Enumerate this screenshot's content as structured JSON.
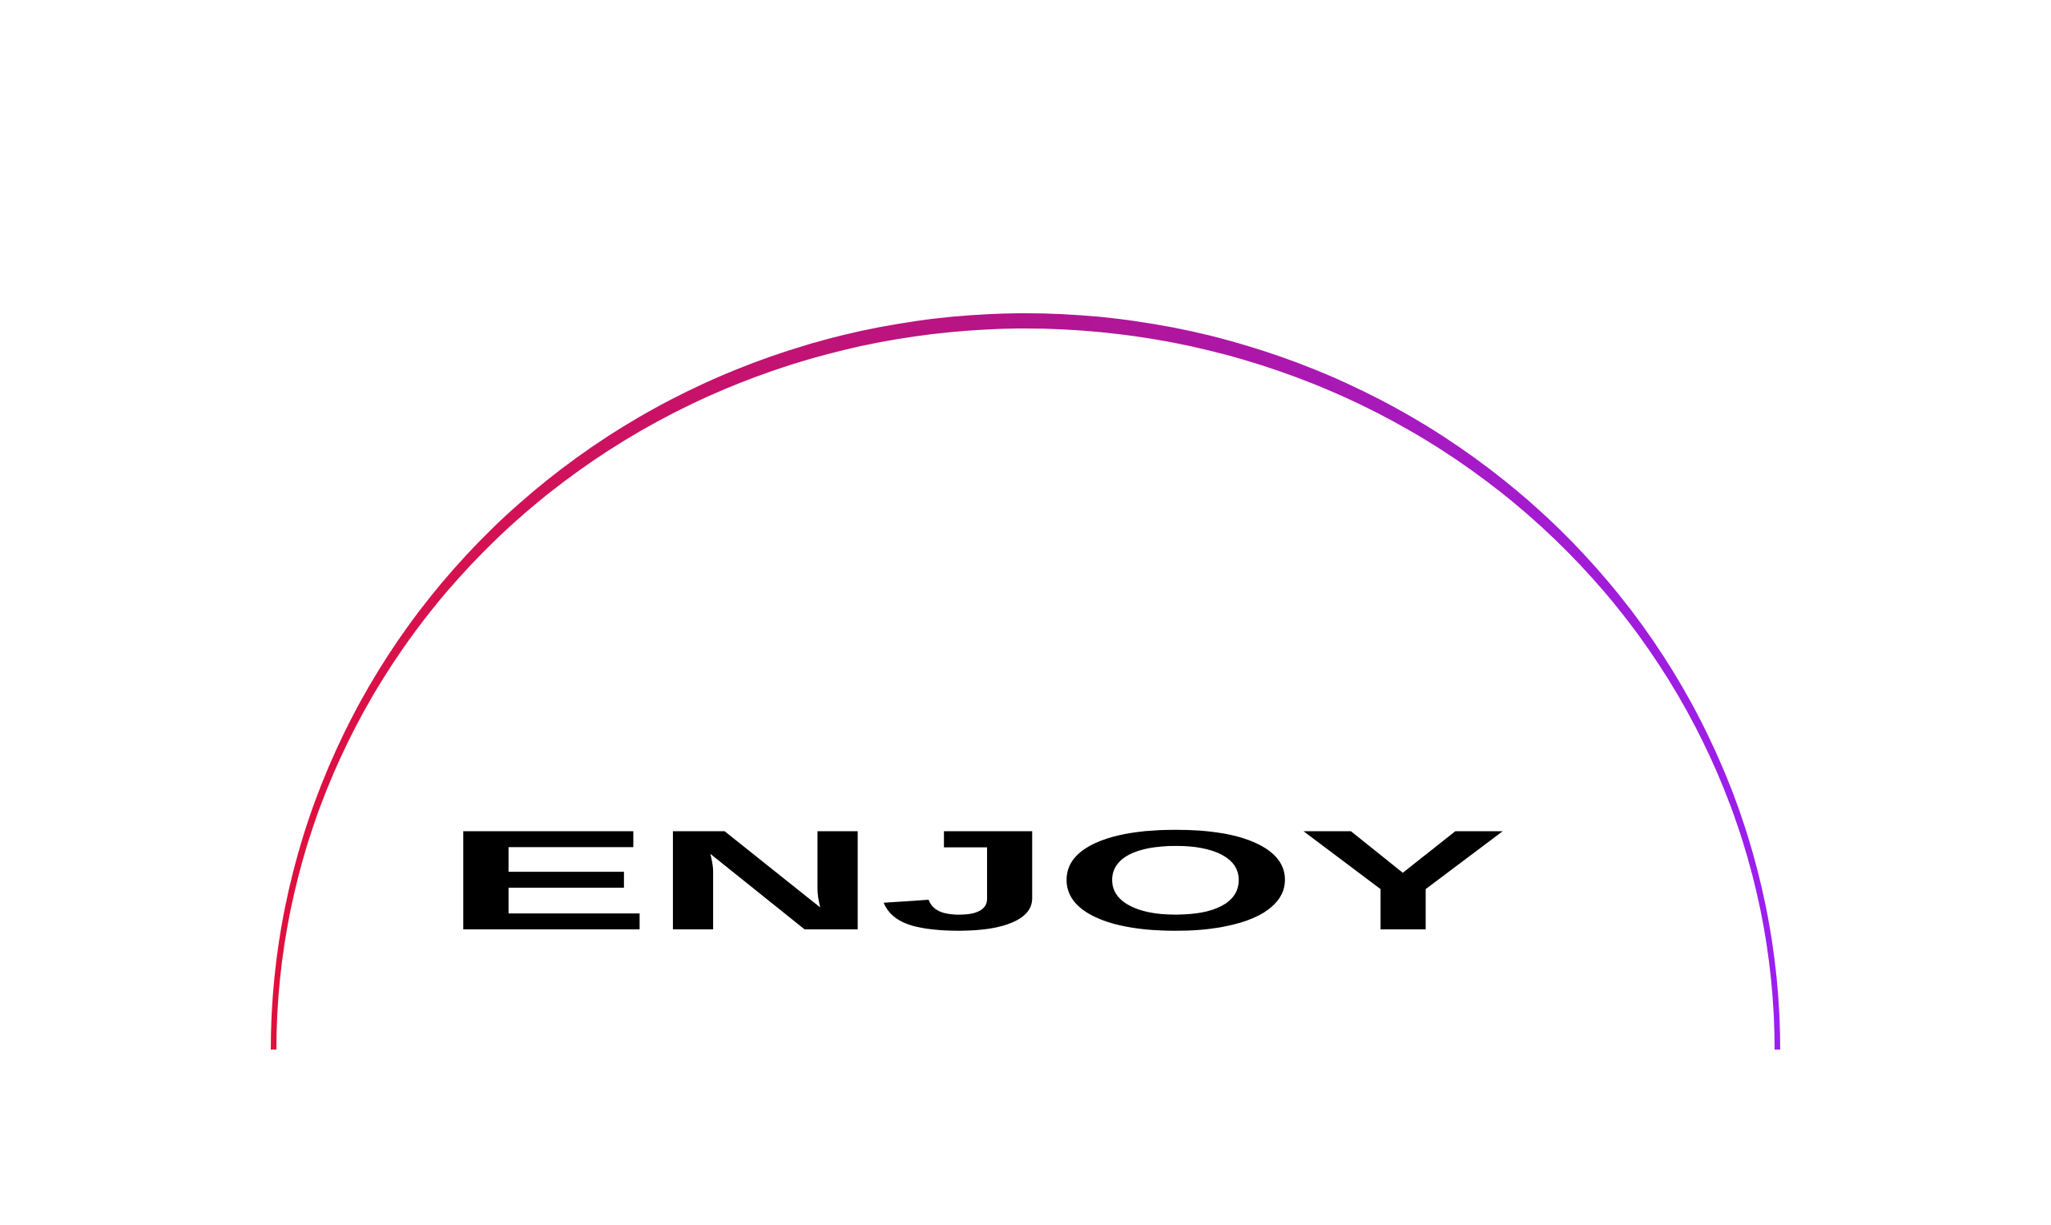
{
  "logo": {
    "text": "ENJOY",
    "text_color": "#000000"
  },
  "arc": {
    "gradient_start": "#e0103c",
    "gradient_mid": "#b4148c",
    "gradient_end": "#9b1ff0"
  }
}
